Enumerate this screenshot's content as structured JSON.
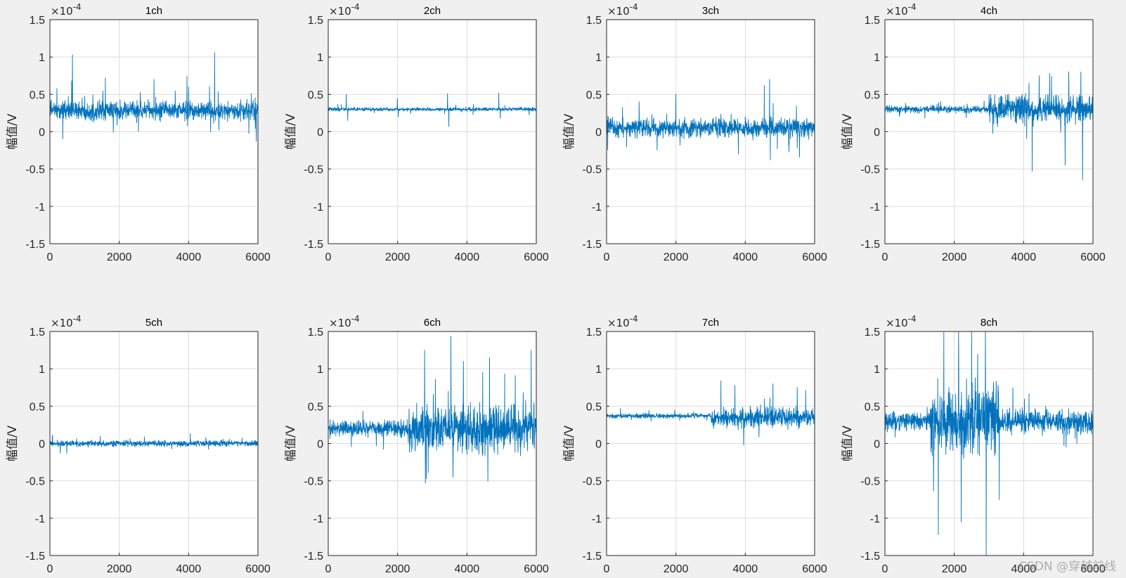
{
  "figure": {
    "background": "#f0f0f0",
    "axes_background": "#ffffff",
    "line_color": "#0072bd",
    "grid": true,
    "watermark": "CSDN @穿越前线"
  },
  "chart_data": [
    {
      "type": "line",
      "title": "1ch",
      "ylabel": "幅值/V",
      "exponent_label": "×10^-4",
      "xlim": [
        0,
        6000
      ],
      "ylim": [
        -1.5,
        1.5
      ],
      "xticks": [
        0,
        2000,
        4000,
        6000
      ],
      "yticks": [
        -1.5,
        -1,
        -0.5,
        0,
        0.5,
        1,
        1.5
      ],
      "series": [
        {
          "color": "#0072bd",
          "segments": [
            {
              "from": 0,
              "to": 6000,
              "mean": 0.28,
              "std": 0.08
            }
          ],
          "spikes": [
            [
              650,
              1.03
            ],
            [
              4750,
              1.06
            ],
            [
              630,
              0.68
            ],
            [
              1600,
              0.72
            ],
            [
              3000,
              0.7
            ],
            [
              3950,
              0.74
            ],
            [
              200,
              0.58
            ],
            [
              4000,
              0.6
            ],
            [
              5950,
              -0.13
            ]
          ]
        }
      ]
    },
    {
      "type": "line",
      "title": "2ch",
      "ylabel": "幅值/V",
      "exponent_label": "×10^-4",
      "xlim": [
        0,
        6000
      ],
      "ylim": [
        -1.5,
        1.5
      ],
      "xticks": [
        0,
        2000,
        4000,
        6000
      ],
      "yticks": [
        -1.5,
        -1,
        -0.5,
        0,
        0.5,
        1,
        1.5
      ],
      "series": [
        {
          "color": "#0072bd",
          "segments": [
            {
              "from": 0,
              "to": 6000,
              "mean": 0.3,
              "std": 0.015
            }
          ],
          "spikes": [
            [
              520,
              0.5
            ],
            [
              560,
              0.15
            ],
            [
              1990,
              0.45
            ],
            [
              2020,
              0.2
            ],
            [
              3440,
              0.51
            ],
            [
              3480,
              0.07
            ],
            [
              4920,
              0.52
            ],
            [
              4960,
              0.18
            ]
          ]
        }
      ]
    },
    {
      "type": "line",
      "title": "3ch",
      "ylabel": "幅值/V",
      "exponent_label": "×10^-4",
      "xlim": [
        0,
        6000
      ],
      "ylim": [
        -1.5,
        1.5
      ],
      "xticks": [
        0,
        2000,
        4000,
        6000
      ],
      "yticks": [
        -1.5,
        -1,
        -0.5,
        0,
        0.5,
        1,
        1.5
      ],
      "series": [
        {
          "color": "#0072bd",
          "segments": [
            {
              "from": 0,
              "to": 6000,
              "mean": 0.05,
              "std": 0.08
            }
          ],
          "spikes": [
            [
              4700,
              0.7
            ],
            [
              2000,
              0.5
            ],
            [
              4550,
              0.62
            ],
            [
              4720,
              -0.38
            ],
            [
              3800,
              -0.3
            ],
            [
              5500,
              -0.22
            ]
          ]
        }
      ]
    },
    {
      "type": "line",
      "title": "4ch",
      "ylabel": "幅值/V",
      "exponent_label": "×10^-4",
      "xlim": [
        0,
        6000
      ],
      "ylim": [
        -1.5,
        1.5
      ],
      "xticks": [
        0,
        2000,
        4000,
        6000
      ],
      "yticks": [
        -1.5,
        -1,
        -0.5,
        0,
        0.5,
        1,
        1.5
      ],
      "series": [
        {
          "color": "#0072bd",
          "segments": [
            {
              "from": 0,
              "to": 3000,
              "mean": 0.3,
              "std": 0.03
            },
            {
              "from": 3000,
              "to": 6000,
              "mean": 0.3,
              "std": 0.12
            }
          ],
          "spikes": [
            [
              4250,
              -0.53
            ],
            [
              5700,
              -0.65
            ],
            [
              5650,
              0.8
            ],
            [
              4750,
              0.78
            ],
            [
              4450,
              0.75
            ],
            [
              5200,
              -0.45
            ]
          ]
        }
      ]
    },
    {
      "type": "line",
      "title": "5ch",
      "ylabel": "幅值/V",
      "exponent_label": "×10^-4",
      "xlim": [
        0,
        6000
      ],
      "ylim": [
        -1.5,
        1.5
      ],
      "xticks": [
        0,
        2000,
        4000,
        6000
      ],
      "yticks": [
        -1.5,
        -1,
        -0.5,
        0,
        0.5,
        1,
        1.5
      ],
      "series": [
        {
          "color": "#0072bd",
          "segments": [
            {
              "from": 0,
              "to": 6000,
              "mean": 0.0,
              "std": 0.025
            }
          ],
          "spikes": [
            [
              1450,
              0.1
            ],
            [
              300,
              -0.13
            ],
            [
              4500,
              0.08
            ]
          ]
        }
      ]
    },
    {
      "type": "line",
      "title": "6ch",
      "ylabel": "幅值/V",
      "exponent_label": "×10^-4",
      "xlim": [
        0,
        6000
      ],
      "ylim": [
        -1.5,
        1.5
      ],
      "xticks": [
        0,
        2000,
        4000,
        6000
      ],
      "yticks": [
        -1.5,
        -1,
        -0.5,
        0,
        0.5,
        1,
        1.5
      ],
      "series": [
        {
          "color": "#0072bd",
          "segments": [
            {
              "from": 0,
              "to": 2300,
              "mean": 0.2,
              "std": 0.07
            },
            {
              "from": 2300,
              "to": 6000,
              "mean": 0.2,
              "std": 0.2
            }
          ],
          "spikes": [
            [
              2780,
              1.25
            ],
            [
              5850,
              1.25
            ],
            [
              3900,
              1.1
            ],
            [
              4650,
              1.15
            ],
            [
              2800,
              -0.53
            ],
            [
              3600,
              -0.45
            ],
            [
              4600,
              -0.5
            ]
          ]
        }
      ]
    },
    {
      "type": "line",
      "title": "7ch",
      "ylabel": "幅值/V",
      "exponent_label": "×10^-4",
      "xlim": [
        0,
        6000
      ],
      "ylim": [
        -1.5,
        1.5
      ],
      "xticks": [
        0,
        2000,
        4000,
        6000
      ],
      "yticks": [
        -1.5,
        -1,
        -0.5,
        0,
        0.5,
        1,
        1.5
      ],
      "series": [
        {
          "color": "#0072bd",
          "segments": [
            {
              "from": 0,
              "to": 3000,
              "mean": 0.37,
              "std": 0.02
            },
            {
              "from": 3000,
              "to": 6000,
              "mean": 0.35,
              "std": 0.08
            }
          ],
          "spikes": [
            [
              3300,
              0.84
            ],
            [
              3950,
              -0.02
            ],
            [
              4800,
              0.8
            ],
            [
              5500,
              0.75
            ],
            [
              3700,
              0.78
            ]
          ]
        }
      ]
    },
    {
      "type": "line",
      "title": "8ch",
      "ylabel": "幅值/V",
      "exponent_label": "×10^-4",
      "xlim": [
        0,
        6000
      ],
      "ylim": [
        -1.5,
        1.5
      ],
      "xticks": [
        0,
        2000,
        4000,
        6000
      ],
      "yticks": [
        -1.5,
        -1,
        -0.5,
        0,
        0.5,
        1,
        1.5
      ],
      "series": [
        {
          "color": "#0072bd",
          "segments": [
            {
              "from": 0,
              "to": 1300,
              "mean": 0.3,
              "std": 0.08
            },
            {
              "from": 1300,
              "to": 3300,
              "mean": 0.3,
              "std": 0.3
            },
            {
              "from": 3300,
              "to": 6000,
              "mean": 0.3,
              "std": 0.1
            }
          ],
          "spikes": [
            [
              2920,
              -1.5
            ],
            [
              1540,
              -1.22
            ],
            [
              2200,
              -1.05
            ],
            [
              1700,
              1.5
            ],
            [
              2500,
              1.5
            ],
            [
              2900,
              1.5
            ]
          ]
        }
      ]
    }
  ]
}
